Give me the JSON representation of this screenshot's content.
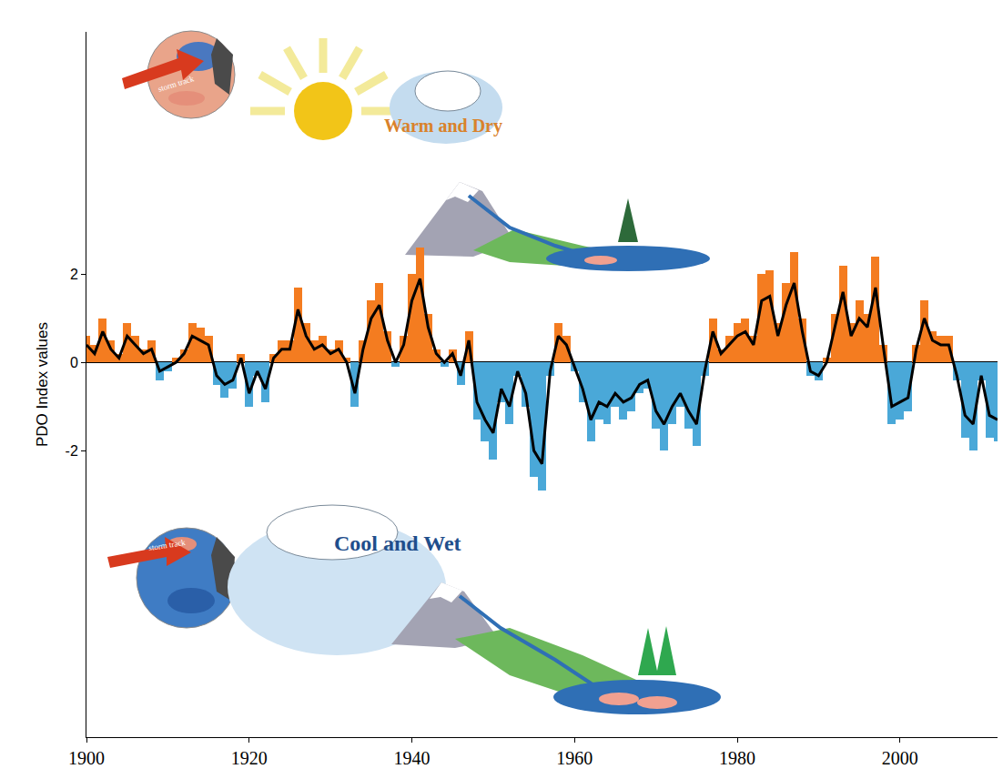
{
  "chart_data": {
    "type": "bar",
    "ylabel": "PDO Index values",
    "x": [
      1900,
      1901,
      1902,
      1903,
      1904,
      1905,
      1906,
      1907,
      1908,
      1909,
      1910,
      1911,
      1912,
      1913,
      1914,
      1915,
      1916,
      1917,
      1918,
      1919,
      1920,
      1921,
      1922,
      1923,
      1924,
      1925,
      1926,
      1927,
      1928,
      1929,
      1930,
      1931,
      1932,
      1933,
      1934,
      1935,
      1936,
      1937,
      1938,
      1939,
      1940,
      1941,
      1942,
      1943,
      1944,
      1945,
      1946,
      1947,
      1948,
      1949,
      1950,
      1951,
      1952,
      1953,
      1954,
      1955,
      1956,
      1957,
      1958,
      1959,
      1960,
      1961,
      1962,
      1963,
      1964,
      1965,
      1966,
      1967,
      1968,
      1969,
      1970,
      1971,
      1972,
      1973,
      1974,
      1975,
      1976,
      1977,
      1978,
      1979,
      1980,
      1981,
      1982,
      1983,
      1984,
      1985,
      1986,
      1987,
      1988,
      1989,
      1990,
      1991,
      1992,
      1993,
      1994,
      1995,
      1996,
      1997,
      1998,
      1999,
      2000,
      2001,
      2002,
      2003,
      2004,
      2005,
      2006,
      2007,
      2008,
      2009,
      2010,
      2011,
      2012
    ],
    "xlim": [
      1900,
      2012
    ],
    "xticks": [
      1900,
      1920,
      1940,
      1960,
      1980,
      2000
    ],
    "ylim": [
      -8.5,
      7.5
    ],
    "yticks": [
      -2,
      0,
      2
    ],
    "grid": false,
    "annotations": [
      "Warm and Dry",
      "Cool and Wet",
      "storm track",
      "storm track"
    ],
    "series": [
      {
        "type": "bar",
        "color": "#f47c20",
        "values": [
          0.6,
          0.4,
          1.0,
          0.5,
          0.2,
          0.9,
          0.6,
          0.3,
          0.5,
          null,
          null,
          0.1,
          0.3,
          0.9,
          0.8,
          0.6,
          null,
          null,
          null,
          0.2,
          null,
          null,
          null,
          0.2,
          0.5,
          0.5,
          1.7,
          0.9,
          0.5,
          0.6,
          0.3,
          0.5,
          0.1,
          null,
          0.5,
          1.4,
          1.8,
          0.7,
          null,
          0.6,
          2.0,
          2.6,
          1.1,
          0.3,
          null,
          0.3,
          null,
          0.7,
          null,
          null,
          null,
          null,
          null,
          null,
          null,
          null,
          null,
          null,
          0.9,
          0.6,
          null,
          null,
          null,
          null,
          null,
          null,
          null,
          null,
          null,
          null,
          null,
          null,
          null,
          null,
          null,
          null,
          null,
          1.0,
          0.3,
          0.6,
          0.9,
          1.0,
          0.6,
          2.0,
          2.1,
          0.9,
          1.8,
          2.5,
          1.0,
          null,
          null,
          0.1,
          1.1,
          2.2,
          0.9,
          1.4,
          1.1,
          2.4,
          0.4,
          null,
          null,
          null,
          0.4,
          1.4,
          0.7,
          0.6,
          0.6,
          null,
          null,
          null,
          null,
          null,
          null
        ]
      },
      {
        "type": "bar",
        "color": "#4aa8d8",
        "values": [
          null,
          null,
          null,
          null,
          null,
          null,
          null,
          null,
          null,
          -0.4,
          -0.2,
          null,
          null,
          null,
          null,
          null,
          -0.5,
          -0.8,
          -0.6,
          null,
          -1.0,
          -0.3,
          -0.9,
          null,
          null,
          null,
          null,
          null,
          null,
          null,
          null,
          null,
          null,
          -1.0,
          null,
          null,
          null,
          null,
          -0.1,
          null,
          null,
          null,
          null,
          null,
          -0.1,
          null,
          -0.5,
          null,
          -1.3,
          -1.8,
          -2.2,
          -0.9,
          -1.4,
          -0.3,
          -1.0,
          -2.6,
          -2.9,
          -0.3,
          null,
          null,
          -0.2,
          -0.9,
          -1.8,
          -1.3,
          -1.4,
          -1.0,
          -1.3,
          -1.1,
          -0.7,
          -0.6,
          -1.5,
          -2.0,
          -1.4,
          -1.0,
          -1.5,
          -1.9,
          -0.3,
          null,
          null,
          null,
          null,
          null,
          null,
          null,
          null,
          null,
          null,
          null,
          null,
          -0.3,
          -0.4,
          null,
          null,
          null,
          null,
          null,
          null,
          null,
          null,
          -1.4,
          -1.3,
          -1.1,
          null,
          null,
          null,
          null,
          null,
          -0.4,
          -1.7,
          -2.0,
          -0.4,
          -1.7,
          -1.8
        ]
      },
      {
        "type": "line",
        "color": "#000000",
        "values": [
          0.4,
          0.2,
          0.7,
          0.3,
          0.1,
          0.6,
          0.4,
          0.2,
          0.3,
          -0.2,
          -0.1,
          0.0,
          0.2,
          0.6,
          0.5,
          0.4,
          -0.3,
          -0.5,
          -0.4,
          0.1,
          -0.7,
          -0.2,
          -0.6,
          0.1,
          0.3,
          0.3,
          1.2,
          0.6,
          0.3,
          0.4,
          0.2,
          0.3,
          0.0,
          -0.7,
          0.3,
          1.0,
          1.3,
          0.5,
          0.0,
          0.4,
          1.4,
          1.9,
          0.8,
          0.2,
          0.0,
          0.2,
          -0.3,
          0.5,
          -0.9,
          -1.3,
          -1.6,
          -0.6,
          -1.0,
          -0.2,
          -0.7,
          -2.0,
          -2.3,
          -0.2,
          0.6,
          0.4,
          -0.1,
          -0.6,
          -1.3,
          -0.9,
          -1.0,
          -0.7,
          -0.9,
          -0.8,
          -0.5,
          -0.4,
          -1.1,
          -1.4,
          -1.0,
          -0.7,
          -1.1,
          -1.4,
          -0.2,
          0.7,
          0.2,
          0.4,
          0.6,
          0.7,
          0.4,
          1.4,
          1.5,
          0.6,
          1.3,
          1.8,
          0.7,
          -0.2,
          -0.3,
          0.0,
          0.8,
          1.6,
          0.6,
          1.0,
          0.8,
          1.7,
          0.3,
          -1.0,
          -0.9,
          -0.8,
          0.3,
          1.0,
          0.5,
          0.4,
          0.4,
          -0.3,
          -1.2,
          -1.4,
          -0.3,
          -1.2,
          -1.3
        ]
      }
    ]
  }
}
